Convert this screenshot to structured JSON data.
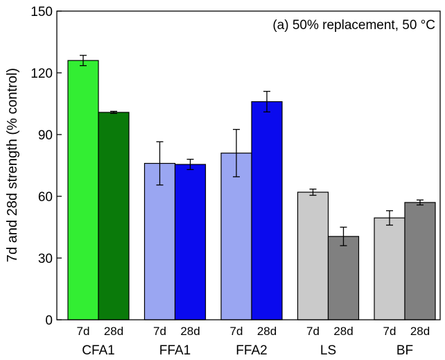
{
  "chart_data": {
    "type": "bar",
    "annotation": "(a) 50% replacement, 50 °C",
    "ylabel": "7d and 28d strength (% control)",
    "xlabel": "",
    "ylim": [
      0,
      150
    ],
    "yticks": [
      0,
      30,
      60,
      90,
      120,
      150
    ],
    "grid": false,
    "categories": [
      "CFA1",
      "FFA1",
      "FFA2",
      "LS",
      "BF"
    ],
    "sub_categories": [
      "7d",
      "28d"
    ],
    "series": [
      {
        "sub_category": "7d",
        "values": [
          126,
          76,
          81,
          62,
          49.5
        ],
        "error": [
          2.5,
          10.5,
          11.5,
          1.5,
          3.5
        ],
        "colors": [
          "#33ee33",
          "#9aa6f2",
          "#9aa6f2",
          "#cacaca",
          "#cacaca"
        ]
      },
      {
        "sub_category": "28d",
        "values": [
          100.8,
          75.5,
          106,
          40.5,
          57
        ],
        "error": [
          0.5,
          2.5,
          5,
          4.5,
          1.2
        ],
        "colors": [
          "#0a7a0a",
          "#0a0aee",
          "#0a0aee",
          "#808080",
          "#808080"
        ]
      }
    ]
  }
}
